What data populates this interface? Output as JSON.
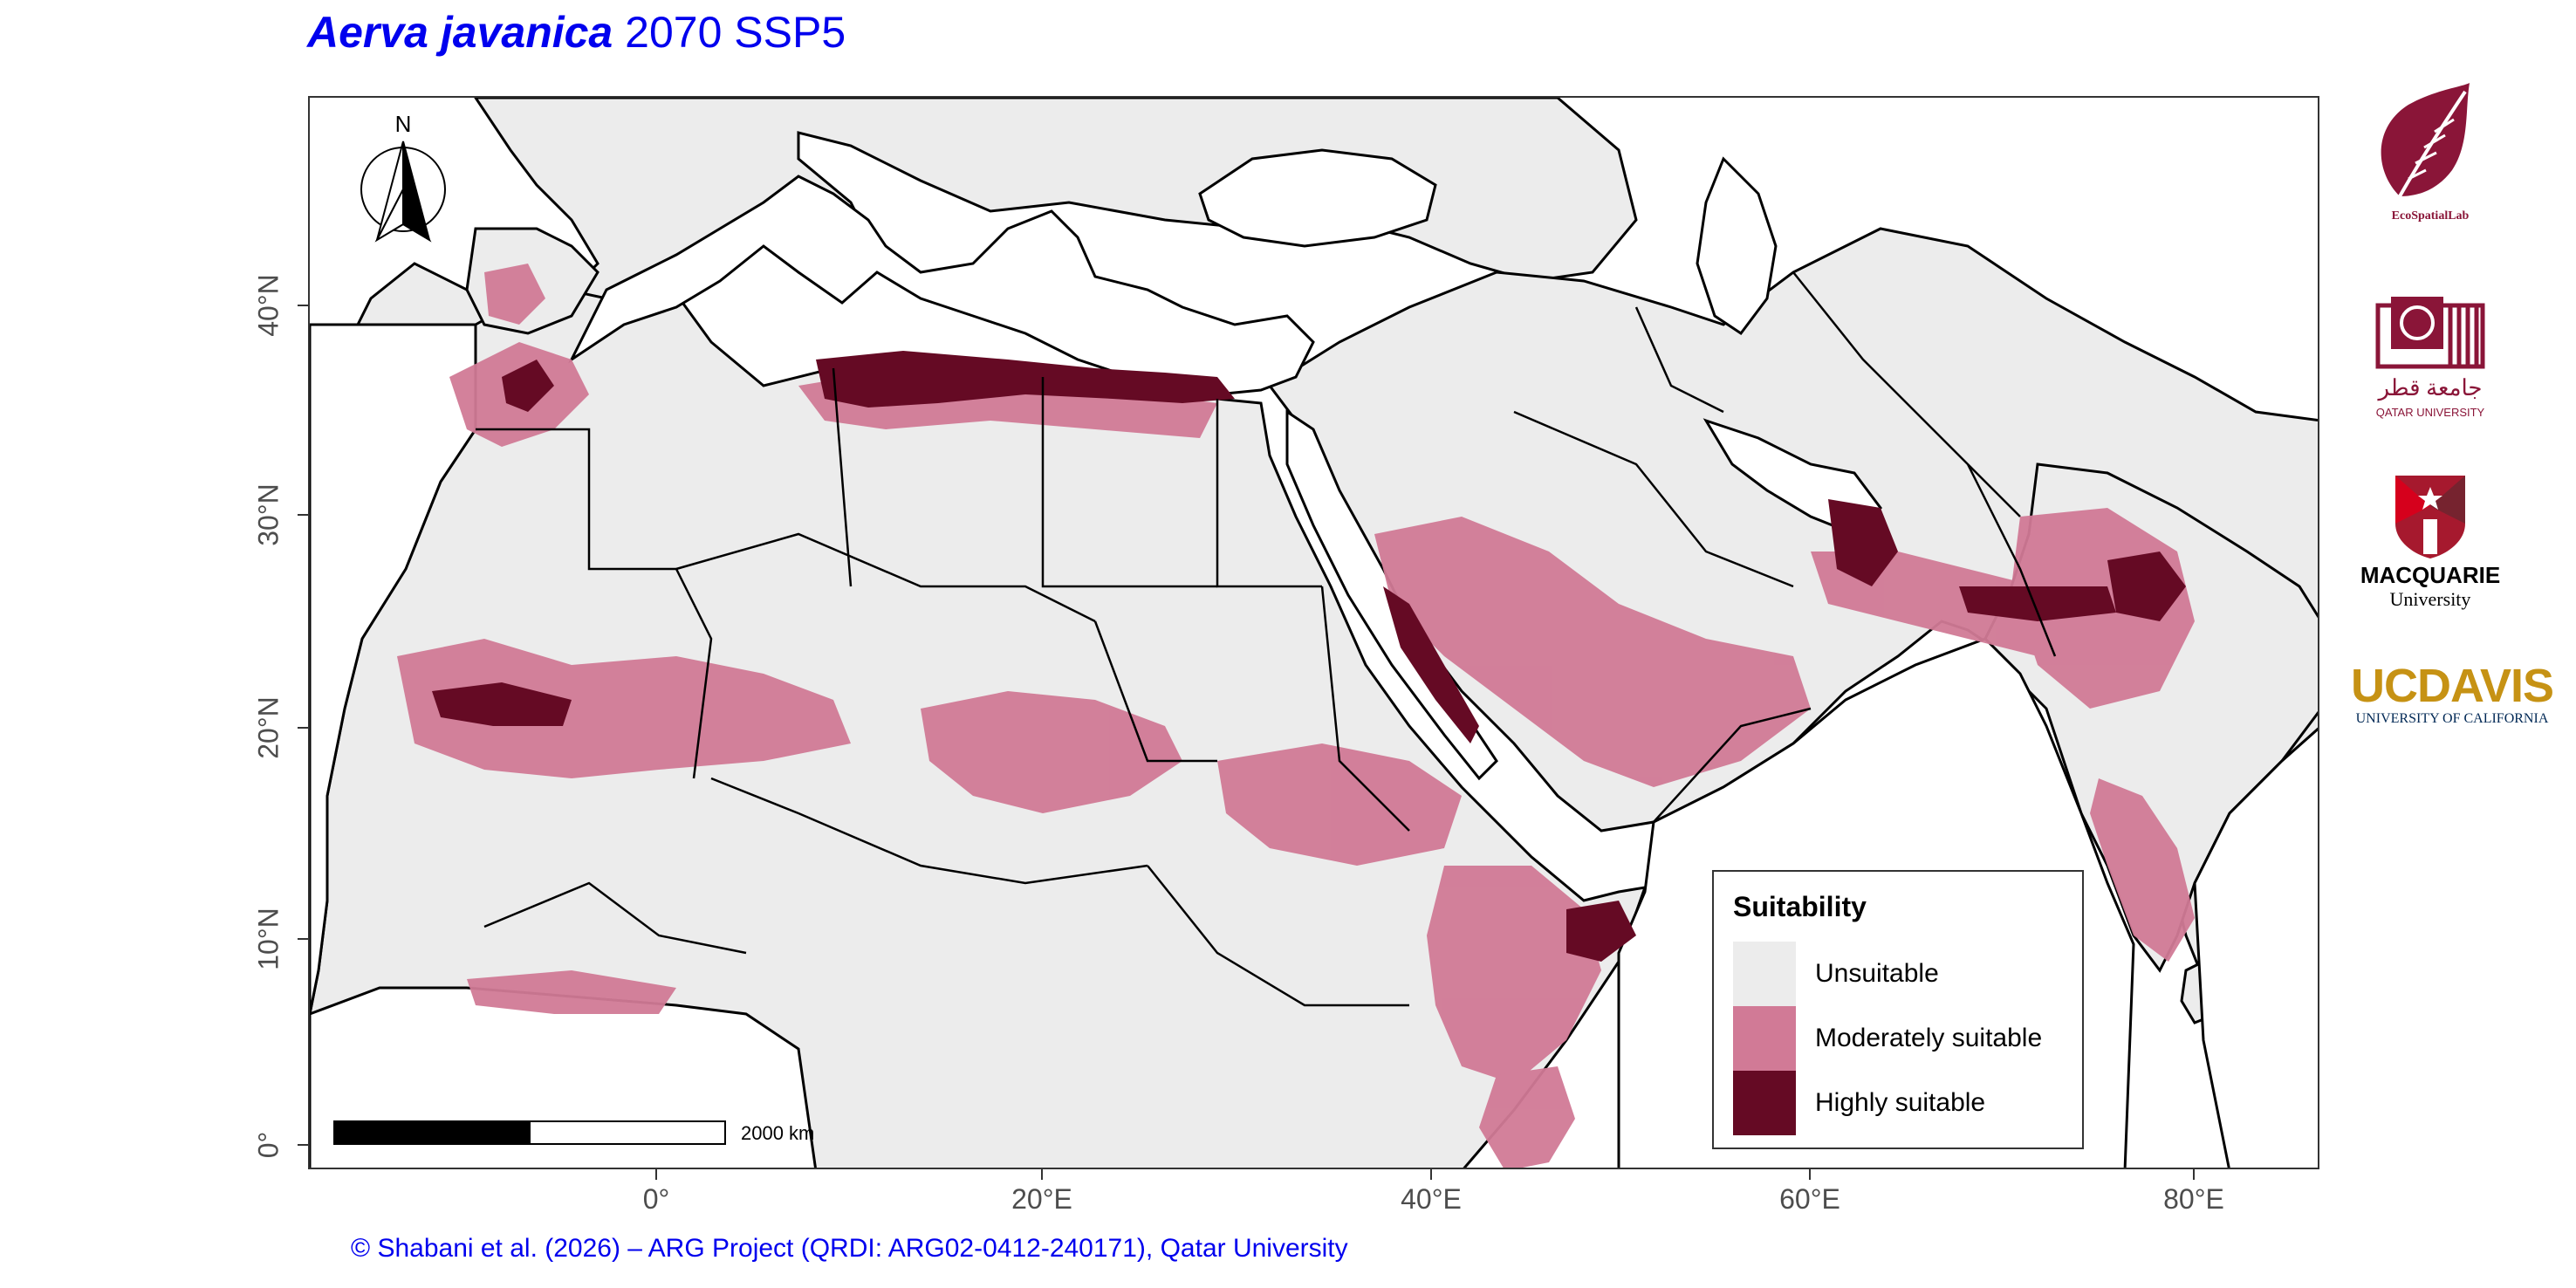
{
  "title": {
    "species": "Aerva javanica",
    "scenario": "2070 SSP5"
  },
  "axes": {
    "lat_ticks": [
      "40°N",
      "30°N",
      "20°N",
      "10°N",
      "0°"
    ],
    "lon_ticks": [
      "0°",
      "20°E",
      "40°E",
      "60°E",
      "80°E"
    ]
  },
  "north_arrow": {
    "label": "N"
  },
  "scale_bar": {
    "label": "2000 km"
  },
  "legend": {
    "title": "Suitability",
    "items": [
      {
        "label": "Unsuitable",
        "color": "#ececec"
      },
      {
        "label": "Moderately suitable",
        "color": "#d17a96"
      },
      {
        "label": "Highly suitable",
        "color": "#650a24"
      }
    ]
  },
  "logos": {
    "ecospatiallab": "EcoSpatialLab",
    "qatar_university_ar": "جامعة قطر",
    "qatar_university_en": "QATAR UNIVERSITY",
    "macquarie_name": "MACQUARIE",
    "macquarie_sub": "University",
    "ucdavis_uc": "UC",
    "ucdavis_davis": "DAVIS",
    "ucdavis_sub": "UNIVERSITY OF CALIFORNIA"
  },
  "colors": {
    "title": "#0000ee",
    "land": "#ececec",
    "sea": "#ffffff",
    "border": "#000000",
    "moderate": "#d17a96",
    "high": "#650a24",
    "qatar_maroon": "#8a1538",
    "ucdavis_gold": "#c69214"
  },
  "footer": "© Shabani et al. (2026) – ARG Project (QRDI: ARG02-0412-240171), Qatar University"
}
